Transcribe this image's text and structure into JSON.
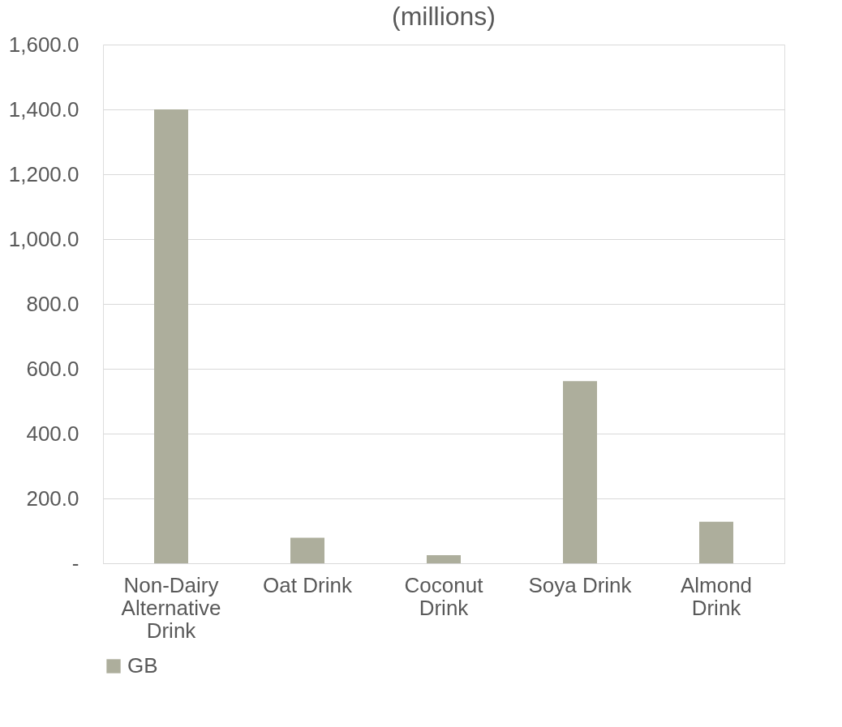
{
  "chart_data": {
    "type": "bar",
    "title": "(millions)",
    "categories": [
      "Non-Dairy Alternative Drink",
      "Oat Drink",
      "Coconut Drink",
      "Soya Drink",
      "Almond Drink"
    ],
    "series": [
      {
        "name": "GB",
        "color": "#adae9c",
        "values": [
          1400,
          79,
          25,
          562,
          128
        ]
      }
    ],
    "ylim": [
      0,
      1600
    ],
    "yticks": [
      {
        "value": 0,
        "label": "-"
      },
      {
        "value": 200,
        "label": "200.0"
      },
      {
        "value": 400,
        "label": "400.0"
      },
      {
        "value": 600,
        "label": "600.0"
      },
      {
        "value": 800,
        "label": "800.0"
      },
      {
        "value": 1000,
        "label": "1,000.0"
      },
      {
        "value": 1200,
        "label": "1,200.0"
      },
      {
        "value": 1400,
        "label": "1,400.0"
      },
      {
        "value": 1600,
        "label": "1,600.0"
      }
    ],
    "grid": "y",
    "legend": "bottom"
  }
}
